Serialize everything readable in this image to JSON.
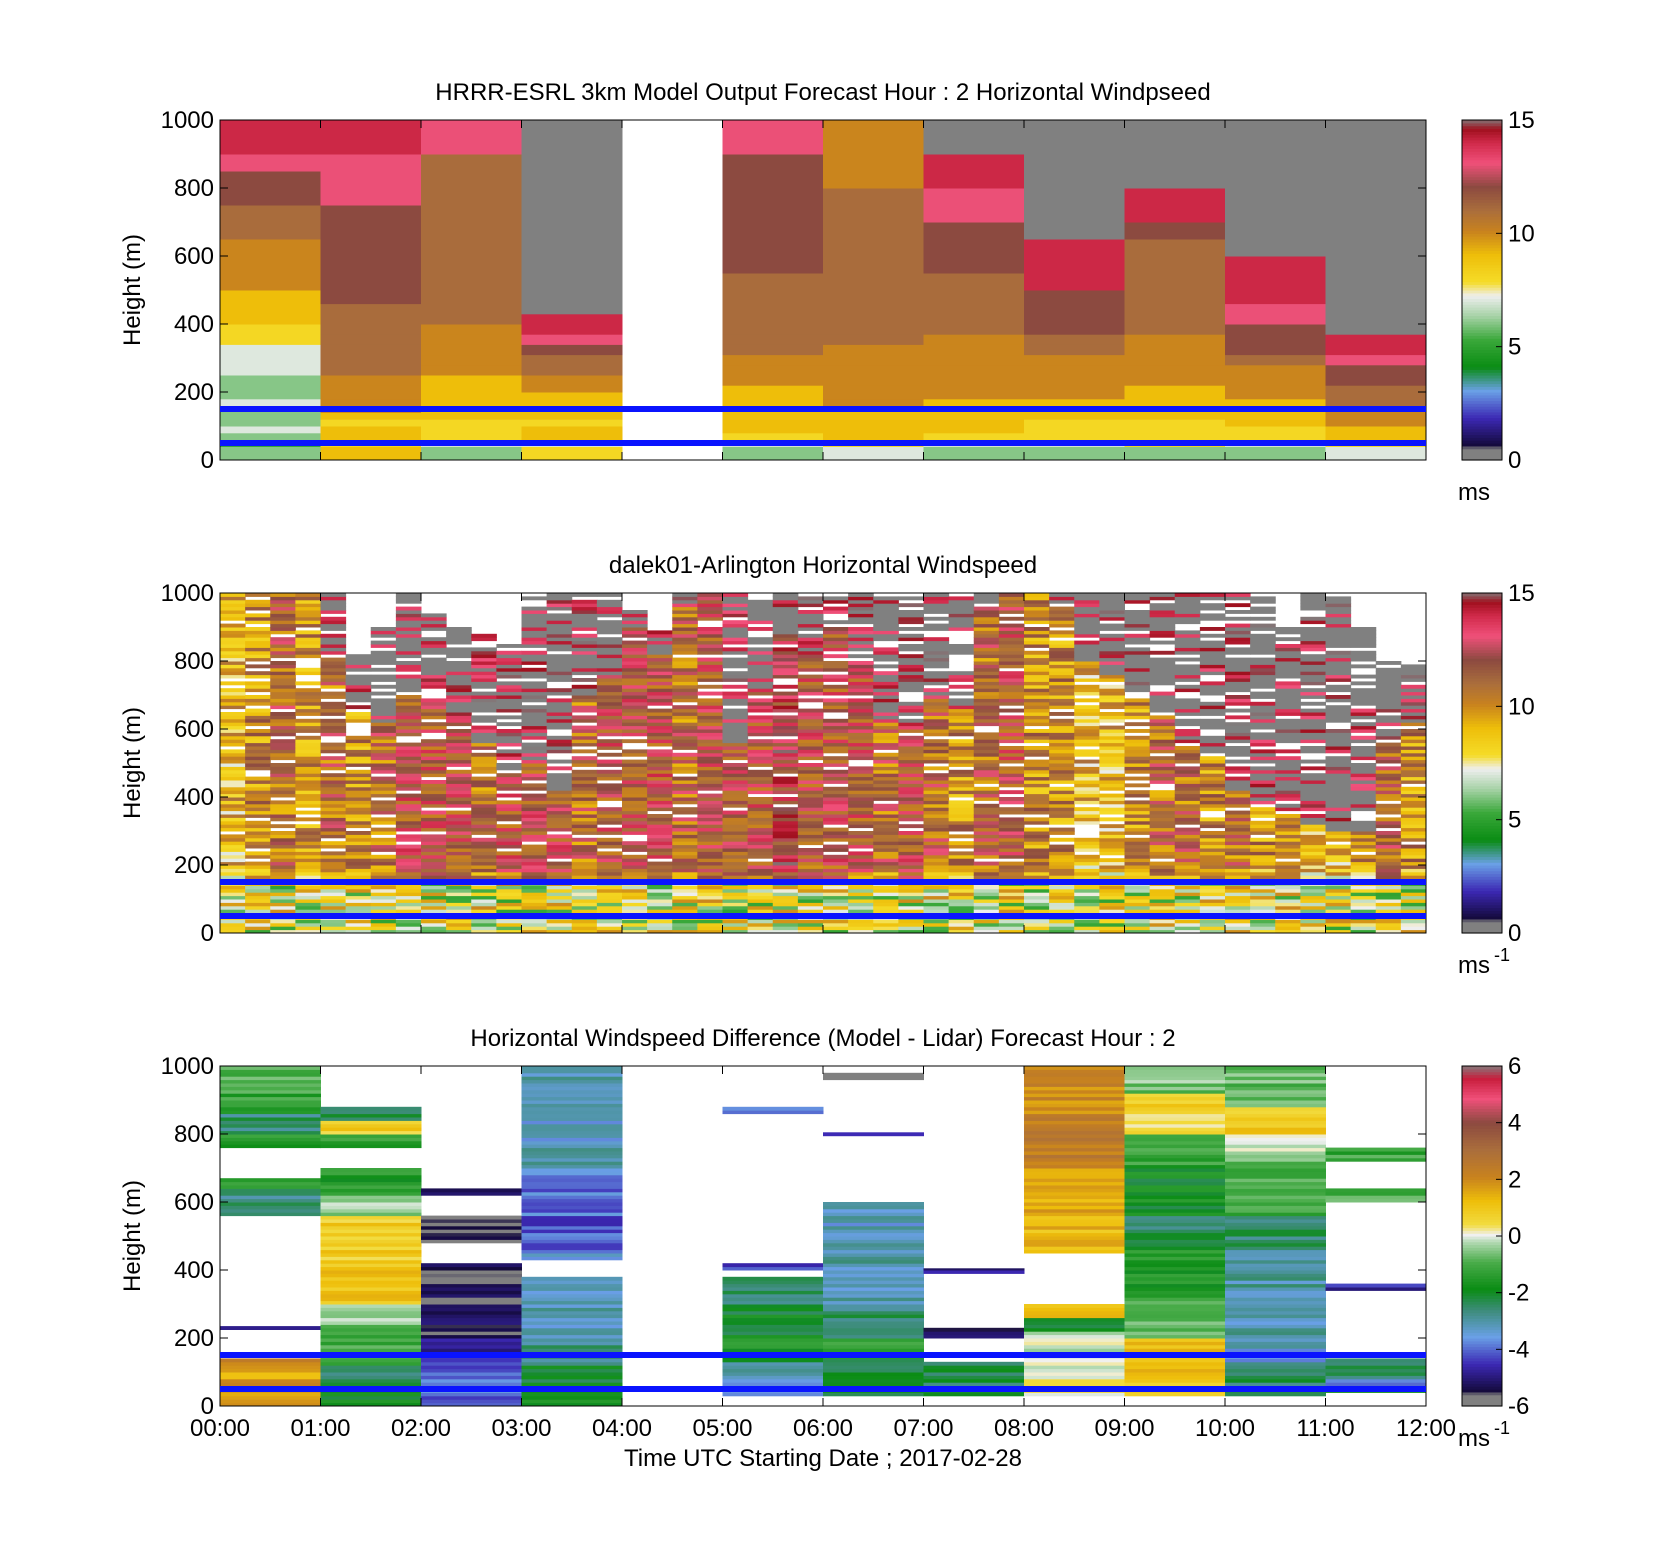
{
  "chart_data": [
    {
      "type": "heatmap",
      "title": "HRRR-ESRL 3km Model Output   Forecast Hour : 2 Horizontal Windpseed",
      "xlabel": "",
      "ylabel": "Height (m)",
      "xlim": [
        0,
        12
      ],
      "ylim": [
        0,
        1000
      ],
      "y_ticks": [
        "0",
        "200",
        "400",
        "600",
        "800",
        "1000"
      ],
      "x_tick_labels": [],
      "colorbar": {
        "range": [
          0,
          15
        ],
        "ticks": [
          "0",
          "5",
          "10",
          "15"
        ],
        "unit": "ms",
        "unit_sup": ""
      },
      "reference_lines_m": [
        50,
        150
      ],
      "reference_line_color": "#0a14ff",
      "missing_color": "#808080",
      "heights_m": [
        20,
        40,
        60,
        80,
        100,
        120,
        140,
        160,
        180,
        200,
        220,
        250,
        280,
        310,
        340,
        370,
        400,
        430,
        460,
        500,
        550,
        600,
        650,
        700,
        750,
        800,
        850,
        900,
        950,
        1000
      ],
      "columns": [
        [
          6,
          6,
          5,
          6,
          7,
          6,
          6,
          6,
          7,
          6,
          6,
          6,
          7,
          7,
          7,
          8,
          8,
          9,
          9,
          9,
          10,
          10,
          10,
          11,
          11,
          12,
          12,
          13,
          14,
          14
        ],
        [
          9,
          9,
          8,
          9,
          9,
          8,
          9,
          10,
          10,
          10,
          10,
          10,
          11,
          11,
          11,
          11,
          11,
          11,
          11,
          12,
          12,
          12,
          12,
          12,
          12,
          13,
          13,
          13,
          14,
          14
        ],
        [
          6,
          6,
          7,
          8,
          8,
          8,
          9,
          9,
          9,
          9,
          9,
          9,
          10,
          10,
          10,
          10,
          10,
          11,
          11,
          11,
          11,
          11,
          11,
          11,
          11,
          11,
          11,
          11,
          13,
          13
        ],
        [
          8,
          8,
          7,
          9,
          9,
          8,
          9,
          9,
          9,
          9,
          10,
          10,
          11,
          11,
          12,
          13,
          14,
          14,
          15,
          15,
          15,
          15,
          15,
          16,
          null,
          null,
          null,
          null,
          null,
          null
        ],
        [
          null,
          null,
          null,
          null,
          null,
          null,
          null,
          null,
          null,
          null,
          null,
          null,
          null,
          null,
          null,
          null,
          null,
          null,
          null,
          null,
          null,
          null,
          null,
          null,
          null,
          null,
          null,
          null,
          null,
          null
        ],
        [
          6,
          6,
          7,
          8,
          9,
          9,
          9,
          9,
          9,
          9,
          9,
          10,
          10,
          10,
          11,
          11,
          11,
          11,
          11,
          11,
          11,
          12,
          12,
          12,
          12,
          12,
          12,
          12,
          13,
          13
        ],
        [
          7,
          7,
          8,
          9,
          9,
          9,
          9,
          9,
          10,
          10,
          10,
          10,
          10,
          10,
          10,
          11,
          11,
          11,
          11,
          11,
          11,
          11,
          11,
          11,
          11,
          11,
          10,
          10,
          10,
          10
        ],
        [
          6,
          6,
          7,
          8,
          9,
          9,
          9,
          9,
          9,
          10,
          10,
          10,
          10,
          10,
          10,
          10,
          11,
          11,
          11,
          11,
          11,
          12,
          12,
          12,
          13,
          13,
          14,
          14,
          15,
          15
        ],
        [
          6,
          6,
          7,
          8,
          8,
          8,
          9,
          9,
          9,
          10,
          10,
          10,
          10,
          10,
          11,
          11,
          12,
          12,
          12,
          12,
          14,
          14,
          14,
          15,
          15,
          null,
          null,
          null,
          null,
          null
        ],
        [
          6,
          6,
          8,
          8,
          8,
          8,
          9,
          9,
          9,
          9,
          9,
          10,
          10,
          10,
          10,
          10,
          11,
          11,
          11,
          11,
          11,
          11,
          11,
          12,
          14,
          14,
          15,
          15,
          null,
          null
        ],
        [
          6,
          6,
          7,
          8,
          8,
          9,
          9,
          9,
          9,
          10,
          10,
          10,
          10,
          11,
          12,
          12,
          12,
          13,
          13,
          14,
          14,
          14,
          15,
          15,
          16,
          16,
          null,
          null,
          null,
          null
        ],
        [
          7,
          7,
          8,
          9,
          9,
          10,
          10,
          10,
          11,
          11,
          11,
          12,
          12,
          13,
          14,
          14,
          15,
          15,
          15,
          15,
          16,
          16,
          null,
          null,
          null,
          null,
          null,
          null,
          null,
          null
        ]
      ]
    },
    {
      "type": "heatmap",
      "title": "dalek01-Arlington  Horizontal Windspeed",
      "xlabel": "",
      "ylabel": "Height (m)",
      "xlim": [
        0,
        12
      ],
      "ylim": [
        0,
        1000
      ],
      "y_ticks": [
        "0",
        "200",
        "400",
        "600",
        "800",
        "1000"
      ],
      "x_tick_labels": [],
      "colorbar": {
        "range": [
          0,
          15
        ],
        "ticks": [
          "0",
          "5",
          "10",
          "15"
        ],
        "unit": "ms",
        "unit_sup": "-1"
      },
      "reference_lines_m": [
        50,
        150
      ],
      "reference_line_color": "#0a14ff",
      "missing_color": "#808080",
      "sub_columns_per_hour": 4,
      "profile_top_m": [
        1000,
        1000,
        1000,
        1000,
        1000,
        820,
        900,
        1000,
        950,
        900,
        880,
        850,
        1000,
        1000,
        1000,
        1000,
        950,
        900,
        1000,
        1000,
        1000,
        1000,
        1000,
        1000,
        1000,
        1000,
        1000,
        1000,
        1000,
        1000,
        1000,
        1000,
        1000,
        1000,
        1000,
        1000,
        1000,
        1000,
        1000,
        1000,
        1000,
        1000,
        900,
        1000,
        1000,
        900,
        800,
        800
      ],
      "profile_gray_above_m": [
        1000,
        1000,
        1000,
        1000,
        820,
        650,
        620,
        700,
        680,
        640,
        560,
        480,
        500,
        420,
        700,
        760,
        900,
        820,
        960,
        1000,
        560,
        720,
        880,
        820,
        900,
        780,
        620,
        600,
        700,
        660,
        960,
        1000,
        1000,
        960,
        800,
        760,
        700,
        640,
        560,
        520,
        420,
        380,
        360,
        320,
        300,
        300,
        560,
        620
      ],
      "profile_mean_ms": [
        9,
        10,
        11,
        10,
        11,
        10,
        11,
        12,
        12,
        12,
        11,
        12,
        12,
        12,
        11,
        12,
        12,
        12,
        11,
        12,
        12,
        12,
        13,
        12,
        12,
        12,
        11,
        12,
        11,
        10,
        11,
        12,
        10,
        10,
        9,
        9,
        10,
        11,
        11,
        10,
        11,
        10,
        10,
        9,
        9,
        10,
        11,
        10
      ]
    },
    {
      "type": "heatmap",
      "title": "Horizontal Windspeed Difference (Model - Lidar) Forecast Hour : 2",
      "xlabel": "Time UTC  Starting Date ; 2017-02-28",
      "ylabel": "Height (m)",
      "xlim": [
        0,
        12
      ],
      "ylim": [
        0,
        1000
      ],
      "y_ticks": [
        "0",
        "200",
        "400",
        "600",
        "800",
        "1000"
      ],
      "x_tick_labels": [
        "00:00",
        "01:00",
        "02:00",
        "03:00",
        "04:00",
        "05:00",
        "06:00",
        "07:00",
        "08:00",
        "09:00",
        "10:00",
        "11:00",
        "12:00"
      ],
      "colorbar": {
        "range": [
          -6,
          6
        ],
        "ticks": [
          "-6",
          "-4",
          "-2",
          "0",
          "2",
          "4",
          "6"
        ],
        "unit": "ms",
        "unit_sup": "-1"
      },
      "reference_lines_m": [
        50,
        150
      ],
      "reference_line_color": "#0a14ff",
      "missing_color": "#808080",
      "segments": [
        [
          [
            0,
            80,
            1.9
          ],
          [
            80,
            110,
            1.4
          ],
          [
            110,
            140,
            2.2
          ],
          [
            225,
            235,
            -4.8
          ],
          [
            560,
            600,
            -2.4
          ],
          [
            600,
            640,
            -2.9
          ],
          [
            640,
            670,
            -1.6
          ],
          [
            760,
            800,
            -1.5
          ],
          [
            800,
            860,
            -2.6
          ],
          [
            860,
            920,
            -1.3
          ],
          [
            920,
            1000,
            -1.1
          ]
        ],
        [
          [
            0,
            40,
            -1.8
          ],
          [
            40,
            120,
            -2.5
          ],
          [
            120,
            230,
            -1.2
          ],
          [
            230,
            300,
            -0.6
          ],
          [
            300,
            420,
            1.1
          ],
          [
            420,
            560,
            0.8
          ],
          [
            560,
            620,
            -0.5
          ],
          [
            620,
            700,
            -1.6
          ],
          [
            760,
            800,
            -1.3
          ],
          [
            800,
            840,
            0.8
          ],
          [
            840,
            880,
            -2.4
          ]
        ],
        [
          [
            0,
            120,
            -4.0
          ],
          [
            120,
            200,
            -4.6
          ],
          [
            200,
            300,
            -5.3
          ],
          [
            300,
            420,
            -5.6
          ],
          [
            480,
            560,
            -5.8
          ],
          [
            620,
            640,
            -5.0
          ]
        ],
        [
          [
            0,
            120,
            -2.0
          ],
          [
            120,
            200,
            -2.7
          ],
          [
            200,
            300,
            -3.2
          ],
          [
            300,
            380,
            -3.4
          ],
          [
            430,
            460,
            -3.6
          ],
          [
            460,
            560,
            -4.2
          ],
          [
            560,
            700,
            -3.9
          ],
          [
            700,
            780,
            -2.9
          ],
          [
            780,
            900,
            -3.3
          ],
          [
            900,
            1000,
            -3.1
          ]
        ],
        [],
        [
          [
            30,
            130,
            -3.3
          ],
          [
            130,
            200,
            -1.6
          ],
          [
            200,
            300,
            -2.0
          ],
          [
            300,
            380,
            -2.4
          ],
          [
            400,
            420,
            -4.2
          ],
          [
            860,
            880,
            -4.0
          ]
        ],
        [
          [
            30,
            140,
            -2.1
          ],
          [
            140,
            200,
            -1.4
          ],
          [
            200,
            300,
            -2.6
          ],
          [
            300,
            460,
            -3.1
          ],
          [
            460,
            600,
            -3.3
          ],
          [
            795,
            805,
            -5.0
          ],
          [
            960,
            980,
            -5.8
          ]
        ],
        [
          [
            30,
            130,
            -2.3
          ],
          [
            200,
            230,
            -5.4
          ],
          [
            390,
            405,
            -5.0
          ]
        ],
        [
          [
            30,
            80,
            0.3
          ],
          [
            80,
            220,
            -0.2
          ],
          [
            220,
            260,
            -2.0
          ],
          [
            260,
            300,
            1.0
          ],
          [
            450,
            560,
            1.2
          ],
          [
            560,
            700,
            1.5
          ],
          [
            700,
            860,
            2.3
          ],
          [
            860,
            1000,
            2.0
          ]
        ],
        [
          [
            30,
            80,
            0.6
          ],
          [
            80,
            200,
            1.0
          ],
          [
            200,
            320,
            -0.8
          ],
          [
            320,
            460,
            -1.6
          ],
          [
            460,
            560,
            -2.4
          ],
          [
            560,
            700,
            -1.9
          ],
          [
            700,
            800,
            -1.3
          ],
          [
            800,
            860,
            0.6
          ],
          [
            860,
            920,
            0.8
          ],
          [
            920,
            1000,
            -0.6
          ]
        ],
        [
          [
            30,
            130,
            -2.4
          ],
          [
            130,
            200,
            -3.4
          ],
          [
            200,
            300,
            -3.1
          ],
          [
            300,
            460,
            -3.0
          ],
          [
            460,
            560,
            -2.5
          ],
          [
            560,
            640,
            -1.2
          ],
          [
            640,
            720,
            -1.1
          ],
          [
            720,
            800,
            -0.4
          ],
          [
            800,
            880,
            0.9
          ],
          [
            880,
            1000,
            -0.8
          ]
        ],
        [
          [
            40,
            60,
            -1.6
          ],
          [
            60,
            80,
            -4.0
          ],
          [
            80,
            140,
            -2.6
          ],
          [
            340,
            360,
            -4.8
          ],
          [
            600,
            640,
            -1.0
          ],
          [
            720,
            760,
            -1.2
          ]
        ]
      ]
    }
  ]
}
